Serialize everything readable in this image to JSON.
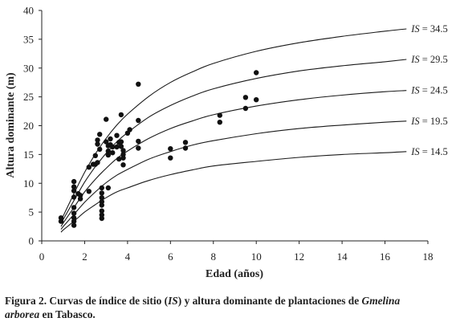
{
  "chart_data": {
    "type": "scatter",
    "xlabel": "Edad (años)",
    "ylabel": "Altura dominante (m)",
    "xlim": [
      0,
      18
    ],
    "ylim": [
      0,
      40
    ],
    "xticks": [
      0,
      2,
      4,
      6,
      8,
      10,
      12,
      14,
      16,
      18
    ],
    "yticks": [
      0,
      5,
      10,
      15,
      20,
      25,
      30,
      35,
      40
    ],
    "grid": false,
    "curves": [
      {
        "is_label": "IS",
        "is_value": "= 34.5",
        "age": [
          0.9,
          1,
          1.5,
          2,
          2.5,
          3,
          3.5,
          4,
          5,
          6,
          7,
          8,
          10,
          12,
          14,
          16,
          17
        ],
        "height": [
          3.5,
          4.3,
          8.2,
          11.9,
          15.1,
          17.8,
          20.1,
          22.0,
          25.1,
          27.5,
          29.3,
          30.8,
          32.9,
          34.4,
          35.5,
          36.4,
          36.8
        ]
      },
      {
        "is_label": "IS",
        "is_value": "= 29.5",
        "age": [
          0.9,
          1,
          1.5,
          2,
          2.5,
          3,
          3.5,
          4,
          5,
          6,
          7,
          8,
          10,
          12,
          14,
          16,
          17
        ],
        "height": [
          3.0,
          3.7,
          7.0,
          10.2,
          12.9,
          15.2,
          17.2,
          18.8,
          21.5,
          23.5,
          25.1,
          26.4,
          28.2,
          29.5,
          30.4,
          31.1,
          31.5
        ]
      },
      {
        "is_label": "IS",
        "is_value": "= 24.5",
        "age": [
          0.9,
          1,
          1.5,
          2,
          2.5,
          3,
          3.5,
          4,
          5,
          6,
          7,
          8,
          10,
          12,
          14,
          16,
          17
        ],
        "height": [
          2.5,
          3.1,
          5.8,
          8.5,
          10.7,
          12.6,
          14.3,
          15.6,
          17.8,
          19.5,
          20.8,
          21.9,
          23.4,
          24.5,
          25.3,
          25.9,
          26.1
        ]
      },
      {
        "is_label": "IS",
        "is_value": "= 19.5",
        "age": [
          0.9,
          1,
          1.5,
          2,
          2.5,
          3,
          3.5,
          4,
          5,
          6,
          7,
          8,
          10,
          12,
          14,
          16,
          17
        ],
        "height": [
          2.0,
          2.5,
          4.6,
          6.7,
          8.5,
          10.1,
          11.4,
          12.4,
          14.2,
          15.5,
          16.6,
          17.4,
          18.6,
          19.5,
          20.1,
          20.6,
          20.8
        ]
      },
      {
        "is_label": "IS",
        "is_value": "= 14.5",
        "age": [
          0.9,
          1,
          1.5,
          2,
          2.5,
          3,
          3.5,
          4,
          5,
          6,
          7,
          8,
          10,
          12,
          14,
          16,
          17
        ],
        "height": [
          1.5,
          1.9,
          3.4,
          5.0,
          6.3,
          7.5,
          8.5,
          9.2,
          10.5,
          11.5,
          12.3,
          13.0,
          13.8,
          14.5,
          15.0,
          15.3,
          15.5
        ]
      }
    ],
    "points": [
      [
        0.9,
        4.0
      ],
      [
        0.9,
        3.4
      ],
      [
        1.5,
        10.3
      ],
      [
        1.5,
        9.4
      ],
      [
        1.5,
        8.7
      ],
      [
        1.5,
        7.6
      ],
      [
        1.5,
        5.8
      ],
      [
        1.5,
        4.8
      ],
      [
        1.5,
        4.0
      ],
      [
        1.5,
        3.4
      ],
      [
        1.5,
        2.7
      ],
      [
        1.7,
        8.2
      ],
      [
        1.8,
        7.9
      ],
      [
        1.8,
        7.3
      ],
      [
        2.2,
        8.6
      ],
      [
        2.2,
        12.8
      ],
      [
        2.4,
        13.3
      ],
      [
        2.5,
        13.3
      ],
      [
        2.5,
        14.8
      ],
      [
        2.6,
        16.8
      ],
      [
        2.6,
        17.5
      ],
      [
        2.6,
        13.6
      ],
      [
        2.7,
        18.5
      ],
      [
        2.7,
        15.9
      ],
      [
        2.8,
        9.2
      ],
      [
        2.8,
        8.3
      ],
      [
        2.8,
        7.5
      ],
      [
        2.8,
        6.8
      ],
      [
        2.8,
        6.2
      ],
      [
        2.8,
        5.2
      ],
      [
        2.8,
        4.5
      ],
      [
        2.8,
        3.9
      ],
      [
        3.0,
        21.1
      ],
      [
        3.0,
        17.2
      ],
      [
        3.1,
        16.5
      ],
      [
        3.1,
        15.6
      ],
      [
        3.1,
        14.9
      ],
      [
        3.2,
        17.7
      ],
      [
        3.2,
        16.7
      ],
      [
        3.3,
        16.3
      ],
      [
        3.3,
        15.3
      ],
      [
        3.1,
        9.2
      ],
      [
        3.5,
        18.3
      ],
      [
        3.5,
        16.3
      ],
      [
        3.6,
        17.1
      ],
      [
        3.6,
        14.2
      ],
      [
        3.7,
        21.9
      ],
      [
        3.7,
        17.2
      ],
      [
        3.7,
        16.4
      ],
      [
        3.8,
        15.7
      ],
      [
        3.8,
        15.0
      ],
      [
        3.8,
        14.4
      ],
      [
        3.8,
        13.2
      ],
      [
        4.0,
        18.7
      ],
      [
        4.1,
        19.3
      ],
      [
        4.5,
        27.2
      ],
      [
        4.5,
        20.9
      ],
      [
        4.5,
        17.3
      ],
      [
        4.5,
        16.1
      ],
      [
        6.0,
        16.0
      ],
      [
        6.0,
        14.4
      ],
      [
        6.7,
        17.1
      ],
      [
        6.7,
        16.1
      ],
      [
        8.3,
        21.8
      ],
      [
        8.3,
        20.6
      ],
      [
        9.5,
        24.9
      ],
      [
        9.5,
        23.0
      ],
      [
        10.0,
        29.2
      ],
      [
        10.0,
        24.5
      ]
    ]
  },
  "caption": {
    "part1": "Figura 2. Curvas de índice de sitio (",
    "is_abbr": "IS",
    "part2": ") y altura dominante de plantaciones de ",
    "genus": "Gmelina",
    "species": "arborea",
    "part3": " en Tabasco."
  }
}
